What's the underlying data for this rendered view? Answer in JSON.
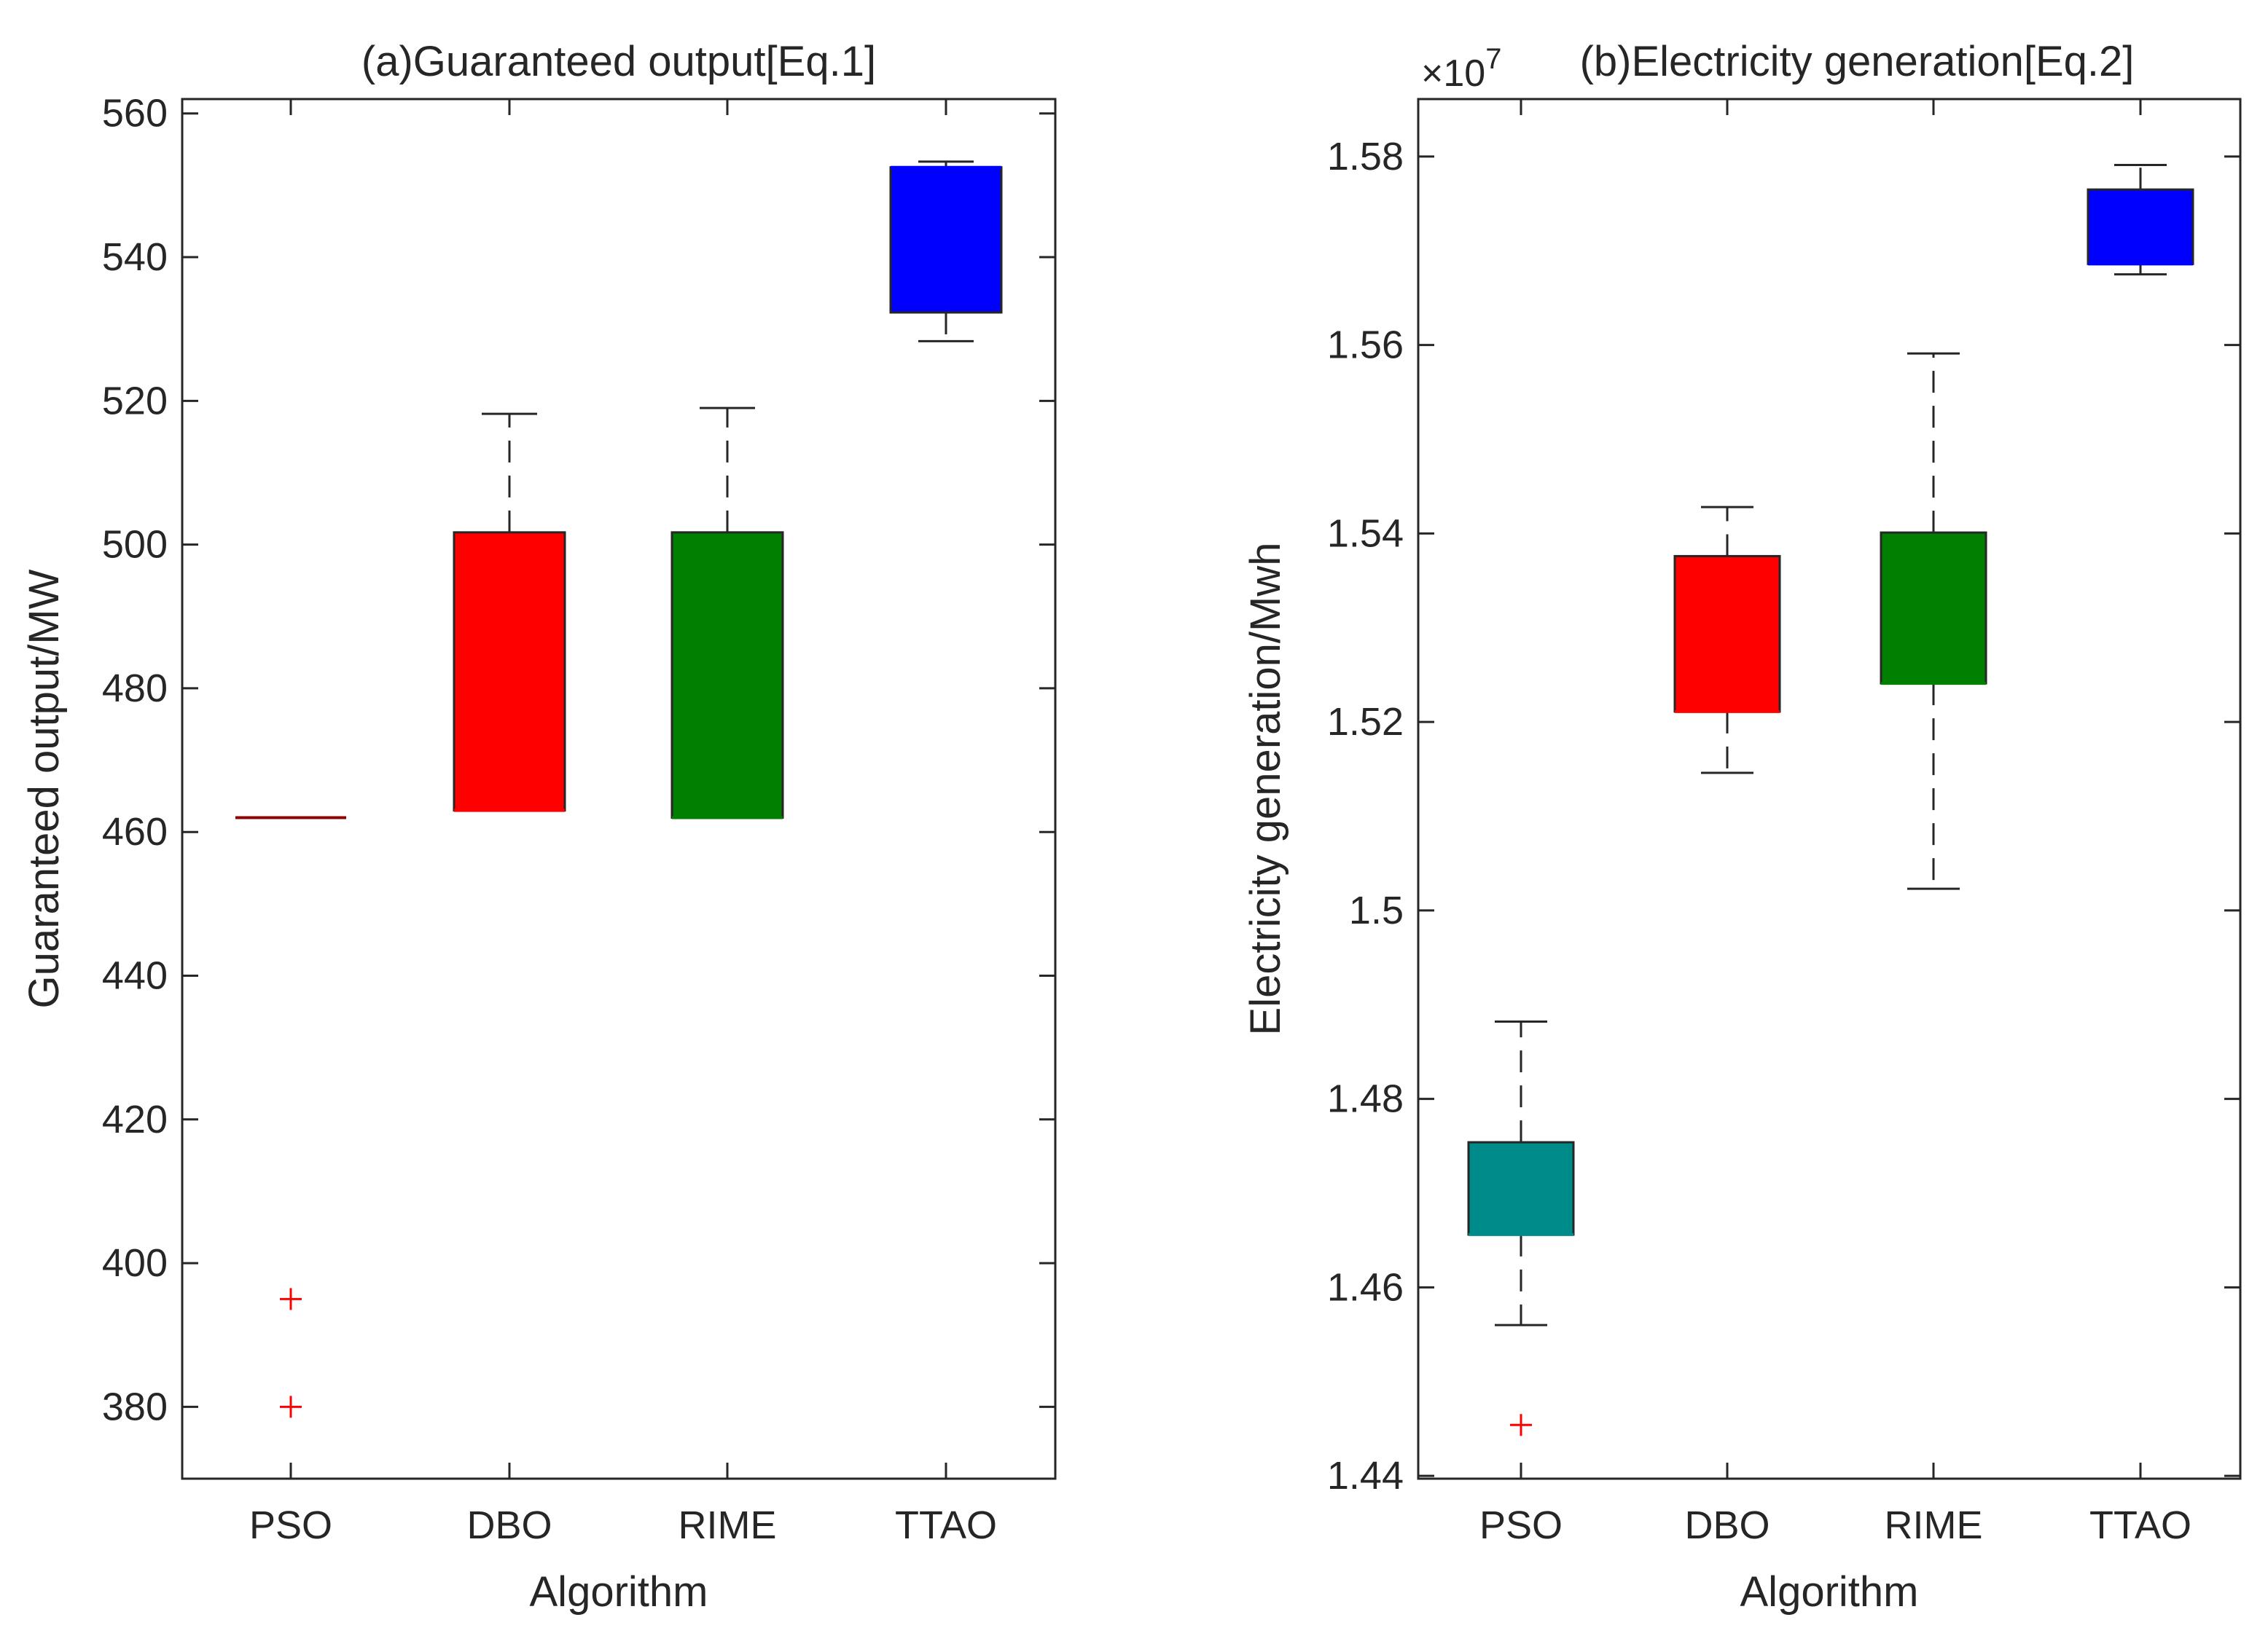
{
  "chart_data": [
    {
      "type": "box",
      "title": "(a)Guaranteed output[Eq.1]",
      "xlabel": "Algorithm",
      "ylabel": "Guaranteed output/MW",
      "ylim": [
        370,
        562
      ],
      "yticks": [
        380,
        400,
        420,
        440,
        460,
        480,
        500,
        520,
        540,
        560
      ],
      "ytick_labels": [
        "380",
        "400",
        "420",
        "440",
        "460",
        "480",
        "500",
        "520",
        "540",
        "560"
      ],
      "categories": [
        "PSO",
        "DBO",
        "RIME",
        "TTAO"
      ],
      "boxes": [
        {
          "category": "PSO",
          "whisker_low": 462,
          "q1": 462,
          "median": 462,
          "q3": 462,
          "whisker_high": 462,
          "outliers": [
            395,
            380
          ],
          "color": "#8b0000"
        },
        {
          "category": "DBO",
          "whisker_low": 463,
          "q1": 463,
          "median": 463,
          "q3": 501.7,
          "whisker_high": 518.2,
          "outliers": [],
          "color": "#ff0000"
        },
        {
          "category": "RIME",
          "whisker_low": 462,
          "q1": 462,
          "median": 462,
          "q3": 501.7,
          "whisker_high": 519,
          "outliers": [],
          "color": "#007f00"
        },
        {
          "category": "TTAO",
          "whisker_low": 528.3,
          "q1": 532.3,
          "median": 552.5,
          "q3": 552.5,
          "whisker_high": 553.3,
          "outliers": [],
          "color": "#0000ff"
        }
      ]
    },
    {
      "type": "box",
      "title": "(b)Electricity generation[Eq.2]",
      "exponent_label": "×10",
      "exponent_power": "7",
      "xlabel": "Algorithm",
      "ylabel": "Electricity generation/Mwh",
      "ylim": [
        1.4397,
        1.5861
      ],
      "yticks": [
        1.44,
        1.46,
        1.48,
        1.5,
        1.52,
        1.54,
        1.56,
        1.58
      ],
      "ytick_labels": [
        "1.44",
        "1.46",
        "1.48",
        "1.5",
        "1.52",
        "1.54",
        "1.56",
        "1.58"
      ],
      "categories": [
        "PSO",
        "DBO",
        "RIME",
        "TTAO"
      ],
      "boxes": [
        {
          "category": "PSO",
          "whisker_low": 1.456,
          "q1": 1.4656,
          "median": 1.4656,
          "q3": 1.4754,
          "whisker_high": 1.4882,
          "outliers": [
            1.4454
          ],
          "color": "#008b8b"
        },
        {
          "category": "DBO",
          "whisker_low": 1.5146,
          "q1": 1.5211,
          "median": 1.5211,
          "q3": 1.5376,
          "whisker_high": 1.5428,
          "outliers": [],
          "color": "#ff0000"
        },
        {
          "category": "RIME",
          "whisker_low": 1.5023,
          "q1": 1.5241,
          "median": 1.5241,
          "q3": 1.5401,
          "whisker_high": 1.5591,
          "outliers": [],
          "color": "#007f00"
        },
        {
          "category": "TTAO",
          "whisker_low": 1.5675,
          "q1": 1.5686,
          "median": 1.5686,
          "q3": 1.5765,
          "whisker_high": 1.5791,
          "outliers": [],
          "color": "#0000ff"
        }
      ]
    }
  ]
}
